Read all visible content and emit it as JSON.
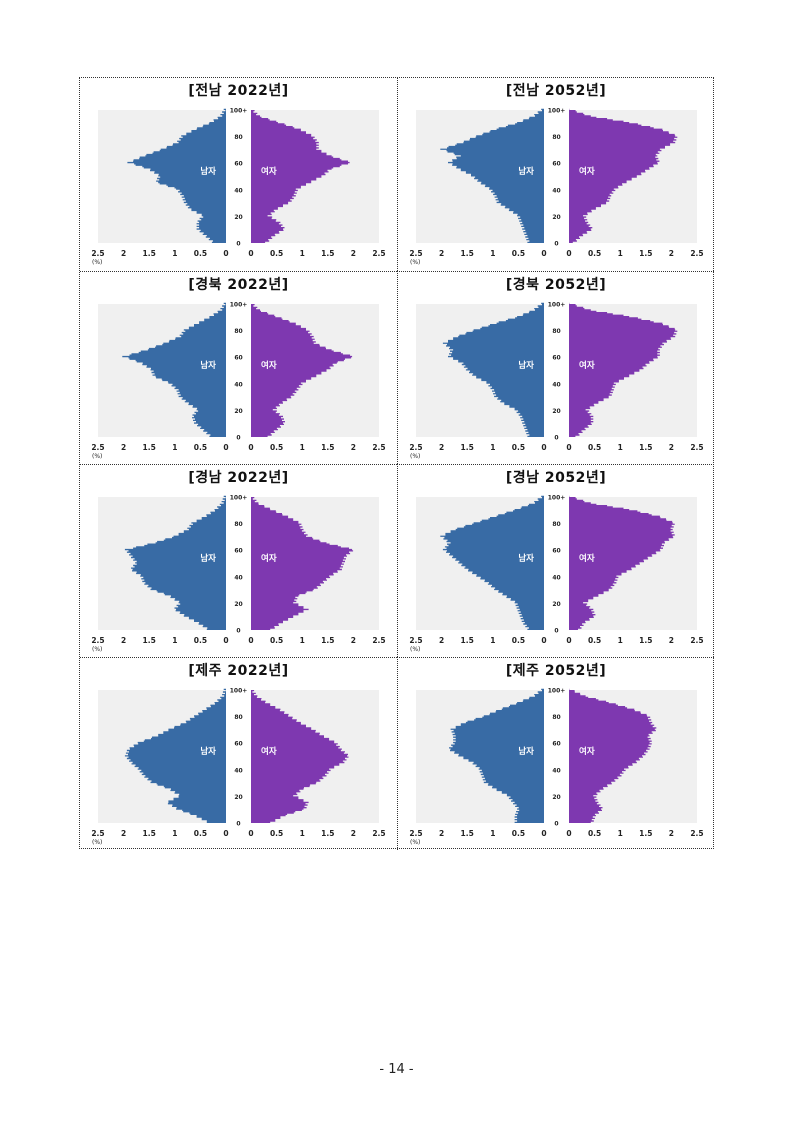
{
  "page": {
    "page_number": "- 14 -"
  },
  "chart_data": [
    {
      "type": "population-pyramid",
      "title": "[전남 2022년]",
      "male_label": "남자",
      "female_label": "여자",
      "x_ticks_male": [
        "2.5",
        "2",
        "1.5",
        "1",
        "0.5",
        "0"
      ],
      "x_ticks_female": [
        "0",
        "0.5",
        "1",
        "1.5",
        "2",
        "2.5"
      ],
      "x_unit": "(%)",
      "y_ticks": [
        "0",
        "20",
        "40",
        "60",
        "80",
        "100+"
      ],
      "xlim": [
        0,
        2.5
      ],
      "ylim": [
        0,
        100
      ],
      "colors": {
        "male": "#386ba5",
        "female": "#7e38b0",
        "background": "#f0f0f0"
      },
      "ages": [
        0,
        5,
        10,
        15,
        20,
        25,
        30,
        35,
        40,
        45,
        50,
        55,
        60,
        65,
        70,
        75,
        80,
        85,
        90,
        95,
        100
      ],
      "male": [
        0.25,
        0.4,
        0.55,
        0.55,
        0.45,
        0.7,
        0.8,
        0.85,
        0.95,
        1.35,
        1.3,
        1.5,
        1.9,
        1.6,
        1.25,
        0.95,
        0.85,
        0.6,
        0.3,
        0.1,
        0.02
      ],
      "female": [
        0.3,
        0.45,
        0.65,
        0.55,
        0.35,
        0.5,
        0.75,
        0.85,
        0.9,
        1.15,
        1.4,
        1.55,
        1.95,
        1.55,
        1.3,
        1.3,
        1.2,
        0.95,
        0.55,
        0.15,
        0.02
      ]
    },
    {
      "type": "population-pyramid",
      "title": "[전남 2052년]",
      "male_label": "남자",
      "female_label": "여자",
      "x_ticks_male": [
        "2.5",
        "2",
        "1.5",
        "1",
        "0.5",
        "0"
      ],
      "x_ticks_female": [
        "0",
        "0.5",
        "1",
        "1.5",
        "2",
        "2.5"
      ],
      "x_unit": "(%)",
      "y_ticks": [
        "0",
        "20",
        "40",
        "60",
        "80",
        "100+"
      ],
      "xlim": [
        0,
        2.5
      ],
      "ylim": [
        0,
        100
      ],
      "colors": {
        "male": "#386ba5",
        "female": "#7e38b0",
        "background": "#f0f0f0"
      },
      "ages": [
        0,
        5,
        10,
        15,
        20,
        25,
        30,
        35,
        40,
        45,
        50,
        55,
        60,
        65,
        70,
        75,
        80,
        85,
        90,
        95,
        100
      ],
      "male": [
        0.3,
        0.35,
        0.4,
        0.45,
        0.5,
        0.7,
        0.9,
        0.95,
        1.05,
        1.25,
        1.4,
        1.65,
        1.85,
        1.65,
        2.0,
        1.6,
        1.3,
        0.95,
        0.5,
        0.2,
        0.03
      ],
      "female": [
        0.1,
        0.25,
        0.45,
        0.35,
        0.3,
        0.5,
        0.75,
        0.8,
        0.9,
        1.1,
        1.35,
        1.55,
        1.75,
        1.7,
        1.8,
        2.05,
        2.1,
        1.8,
        1.2,
        0.4,
        0.03
      ]
    },
    {
      "type": "population-pyramid",
      "title": "[경북 2022년]",
      "male_label": "남자",
      "female_label": "여자",
      "x_ticks_male": [
        "2.5",
        "2",
        "1.5",
        "1",
        "0.5",
        "0"
      ],
      "x_ticks_female": [
        "0",
        "0.5",
        "1",
        "1.5",
        "2",
        "2.5"
      ],
      "x_unit": "(%)",
      "y_ticks": [
        "0",
        "20",
        "40",
        "60",
        "80",
        "100+"
      ],
      "xlim": [
        0,
        2.5
      ],
      "ylim": [
        0,
        100
      ],
      "colors": {
        "male": "#386ba5",
        "female": "#7e38b0",
        "background": "#f0f0f0"
      },
      "ages": [
        0,
        5,
        10,
        15,
        20,
        25,
        30,
        35,
        40,
        45,
        50,
        55,
        60,
        65,
        70,
        75,
        80,
        85,
        90,
        95,
        100
      ],
      "male": [
        0.3,
        0.45,
        0.6,
        0.65,
        0.55,
        0.75,
        0.9,
        0.95,
        1.1,
        1.4,
        1.45,
        1.65,
        2.0,
        1.55,
        1.2,
        0.9,
        0.8,
        0.55,
        0.3,
        0.1,
        0.02
      ],
      "female": [
        0.35,
        0.5,
        0.65,
        0.6,
        0.45,
        0.6,
        0.8,
        0.9,
        1.0,
        1.25,
        1.5,
        1.65,
        2.0,
        1.55,
        1.25,
        1.2,
        1.1,
        0.85,
        0.5,
        0.15,
        0.02
      ]
    },
    {
      "type": "population-pyramid",
      "title": "[경북 2052년]",
      "male_label": "남자",
      "female_label": "여자",
      "x_ticks_male": [
        "2.5",
        "2",
        "1.5",
        "1",
        "0.5",
        "0"
      ],
      "x_ticks_female": [
        "0",
        "0.5",
        "1",
        "1.5",
        "2",
        "2.5"
      ],
      "x_unit": "(%)",
      "y_ticks": [
        "0",
        "20",
        "40",
        "60",
        "80",
        "100+"
      ],
      "xlim": [
        0,
        2.5
      ],
      "ylim": [
        0,
        100
      ],
      "colors": {
        "male": "#386ba5",
        "female": "#7e38b0",
        "background": "#f0f0f0"
      },
      "ages": [
        0,
        5,
        10,
        15,
        20,
        25,
        30,
        35,
        40,
        45,
        50,
        55,
        60,
        65,
        70,
        75,
        80,
        85,
        90,
        95,
        100
      ],
      "male": [
        0.3,
        0.35,
        0.4,
        0.45,
        0.55,
        0.8,
        0.95,
        1.0,
        1.1,
        1.35,
        1.5,
        1.6,
        1.85,
        1.8,
        1.95,
        1.7,
        1.35,
        0.95,
        0.5,
        0.2,
        0.03
      ],
      "female": [
        0.15,
        0.3,
        0.45,
        0.45,
        0.35,
        0.55,
        0.8,
        0.85,
        0.9,
        1.15,
        1.4,
        1.55,
        1.75,
        1.75,
        1.85,
        2.05,
        2.1,
        1.8,
        1.2,
        0.4,
        0.03
      ]
    },
    {
      "type": "population-pyramid",
      "title": "[경남 2022년]",
      "male_label": "남자",
      "female_label": "여자",
      "x_ticks_male": [
        "2.5",
        "2",
        "1.5",
        "1",
        "0.5",
        "0"
      ],
      "x_ticks_female": [
        "0",
        "0.5",
        "1",
        "1.5",
        "2",
        "2.5"
      ],
      "x_unit": "(%)",
      "y_ticks": [
        "0",
        "20",
        "40",
        "60",
        "80",
        "100+"
      ],
      "xlim": [
        0,
        2.5
      ],
      "ylim": [
        0,
        100
      ],
      "colors": {
        "male": "#386ba5",
        "female": "#7e38b0",
        "background": "#f0f0f0"
      },
      "ages": [
        0,
        5,
        10,
        15,
        20,
        25,
        30,
        35,
        40,
        45,
        50,
        55,
        60,
        65,
        70,
        75,
        80,
        85,
        90,
        95,
        100
      ],
      "male": [
        0.35,
        0.55,
        0.8,
        1.0,
        0.9,
        1.1,
        1.45,
        1.6,
        1.65,
        1.85,
        1.75,
        1.85,
        1.95,
        1.4,
        1.0,
        0.75,
        0.65,
        0.4,
        0.2,
        0.07,
        0.02
      ],
      "female": [
        0.4,
        0.6,
        0.85,
        1.1,
        0.85,
        0.9,
        1.25,
        1.4,
        1.55,
        1.75,
        1.8,
        1.85,
        2.0,
        1.45,
        1.1,
        1.0,
        0.95,
        0.7,
        0.4,
        0.12,
        0.02
      ]
    },
    {
      "type": "population-pyramid",
      "title": "[경남 2052년]",
      "male_label": "남자",
      "female_label": "여자",
      "x_ticks_male": [
        "2.5",
        "2",
        "1.5",
        "1",
        "0.5",
        "0"
      ],
      "x_ticks_female": [
        "0",
        "0.5",
        "1",
        "1.5",
        "2",
        "2.5"
      ],
      "x_unit": "(%)",
      "y_ticks": [
        "0",
        "20",
        "40",
        "60",
        "80",
        "100+"
      ],
      "xlim": [
        0,
        2.5
      ],
      "ylim": [
        0,
        100
      ],
      "colors": {
        "male": "#386ba5",
        "female": "#7e38b0",
        "background": "#f0f0f0"
      },
      "ages": [
        0,
        5,
        10,
        15,
        20,
        25,
        30,
        35,
        40,
        45,
        50,
        55,
        60,
        65,
        70,
        75,
        80,
        85,
        90,
        95,
        100
      ],
      "male": [
        0.3,
        0.4,
        0.45,
        0.5,
        0.55,
        0.75,
        0.95,
        1.1,
        1.3,
        1.5,
        1.65,
        1.8,
        1.95,
        1.85,
        2.0,
        1.75,
        1.35,
        0.95,
        0.55,
        0.2,
        0.03
      ],
      "female": [
        0.2,
        0.3,
        0.5,
        0.45,
        0.3,
        0.55,
        0.8,
        0.9,
        0.95,
        1.2,
        1.4,
        1.6,
        1.8,
        1.85,
        2.05,
        2.0,
        2.05,
        1.75,
        1.2,
        0.4,
        0.03
      ]
    },
    {
      "type": "population-pyramid",
      "title": "[제주 2022년]",
      "male_label": "남자",
      "female_label": "여자",
      "x_ticks_male": [
        "2.5",
        "2",
        "1.5",
        "1",
        "0.5",
        "0"
      ],
      "x_ticks_female": [
        "0",
        "0.5",
        "1",
        "1.5",
        "2",
        "2.5"
      ],
      "x_unit": "(%)",
      "y_ticks": [
        "0",
        "20",
        "40",
        "60",
        "80",
        "100+"
      ],
      "xlim": [
        0,
        2.5
      ],
      "ylim": [
        0,
        100
      ],
      "colors": {
        "male": "#386ba5",
        "female": "#7e38b0",
        "background": "#f0f0f0"
      },
      "ages": [
        0,
        5,
        10,
        15,
        20,
        25,
        30,
        35,
        40,
        45,
        50,
        55,
        60,
        65,
        70,
        75,
        80,
        85,
        90,
        95,
        100
      ],
      "male": [
        0.35,
        0.6,
        0.95,
        1.15,
        0.9,
        1.1,
        1.45,
        1.6,
        1.7,
        1.85,
        1.95,
        1.9,
        1.7,
        1.35,
        1.1,
        0.8,
        0.6,
        0.4,
        0.2,
        0.06,
        0.02
      ],
      "female": [
        0.4,
        0.65,
        1.05,
        1.1,
        0.85,
        1.0,
        1.3,
        1.45,
        1.55,
        1.8,
        1.9,
        1.75,
        1.65,
        1.4,
        1.2,
        0.95,
        0.75,
        0.55,
        0.3,
        0.1,
        0.02
      ]
    },
    {
      "type": "population-pyramid",
      "title": "[제주 2052년]",
      "male_label": "남자",
      "female_label": "여자",
      "x_ticks_male": [
        "2.5",
        "2",
        "1.5",
        "1",
        "0.5",
        "0"
      ],
      "x_ticks_female": [
        "0",
        "0.5",
        "1",
        "1.5",
        "2",
        "2.5"
      ],
      "x_unit": "(%)",
      "y_ticks": [
        "0",
        "20",
        "40",
        "60",
        "80",
        "100+"
      ],
      "xlim": [
        0,
        2.5
      ],
      "ylim": [
        0,
        100
      ],
      "colors": {
        "male": "#386ba5",
        "female": "#7e38b0",
        "background": "#f0f0f0"
      },
      "ages": [
        0,
        5,
        10,
        15,
        20,
        25,
        30,
        35,
        40,
        45,
        50,
        55,
        60,
        65,
        70,
        75,
        80,
        85,
        90,
        95,
        100
      ],
      "male": [
        0.55,
        0.55,
        0.5,
        0.6,
        0.7,
        0.95,
        1.15,
        1.2,
        1.25,
        1.4,
        1.65,
        1.85,
        1.75,
        1.75,
        1.8,
        1.55,
        1.15,
        0.85,
        0.5,
        0.2,
        0.03
      ],
      "female": [
        0.45,
        0.5,
        0.65,
        0.55,
        0.5,
        0.65,
        0.85,
        1.0,
        1.1,
        1.3,
        1.45,
        1.55,
        1.6,
        1.55,
        1.7,
        1.6,
        1.55,
        1.25,
        0.8,
        0.3,
        0.03
      ]
    }
  ]
}
